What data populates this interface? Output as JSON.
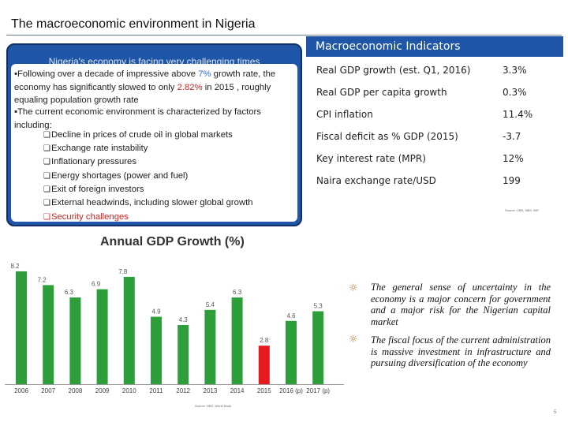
{
  "slide": {
    "title": "The macroeconomic environment in Nigeria",
    "page_number": "5"
  },
  "left_panel": {
    "heading": "Nigeria's economy is facing very challenging times",
    "bullet1": {
      "prefix": "▪Following over a decade of impressive above ",
      "highlight1": "7%",
      "mid1": " growth rate, the economy has significantly slowed to only ",
      "highlight2": "2.82%",
      "suffix": " in 2015 , roughly equaling population growth rate"
    },
    "bullet2": "▪The current economic environment is characterized by factors including:",
    "factors": [
      "Decline in prices of crude oil in global markets",
      "Exchange rate instability",
      "Inflationary pressures",
      "Energy shortages (power and fuel)",
      "Exit of foreign investors",
      "External headwinds, including slower global growth",
      "Security challenges"
    ],
    "box_glyph": "❑"
  },
  "indicators": {
    "header": "Macroeconomic Indicators",
    "rows": [
      {
        "label": "Real GDP growth (est. Q1, 2016)",
        "value": "3.3%"
      },
      {
        "label": "Real GDP per capita growth",
        "value": "0.3%"
      },
      {
        "label": "CPI inflation",
        "value": "11.4%"
      },
      {
        "label": "Fiscal deficit as % GDP (2015)",
        "value": "-3.7"
      },
      {
        "label": "Key interest rate (MPR)",
        "value": "12%"
      },
      {
        "label": "Naira exchange rate/USD",
        "value": "199"
      }
    ],
    "source": "Source: CBN, NBS, IMF"
  },
  "chart_data": {
    "type": "bar",
    "title": "Annual GDP Growth (%)",
    "categories": [
      "2006",
      "2007",
      "2008",
      "2009",
      "2010",
      "2011",
      "2012",
      "2013",
      "2014",
      "2015",
      "2016 (p)",
      "2017 (p)"
    ],
    "values": [
      8.2,
      7.2,
      6.3,
      6.9,
      7.8,
      4.9,
      4.3,
      5.4,
      6.3,
      2.8,
      4.6,
      5.3
    ],
    "highlight_index": 9,
    "bar_color": "#2e9e3a",
    "highlight_color": "#e8191f",
    "ylim": [
      0,
      9
    ],
    "xlabel": "",
    "ylabel": "",
    "source": "Source: NBS, World Bank"
  },
  "notes": [
    {
      "icon": "sun-icon",
      "glyph": "☼",
      "text": "The general sense of uncertainty in the economy is a major concern for government and a major risk for the Nigerian capital market"
    },
    {
      "icon": "sun-icon",
      "glyph": "☼",
      "text": "The fiscal focus of the current administration is massive investment in infrastructure and pursuing diversification of the economy"
    }
  ]
}
